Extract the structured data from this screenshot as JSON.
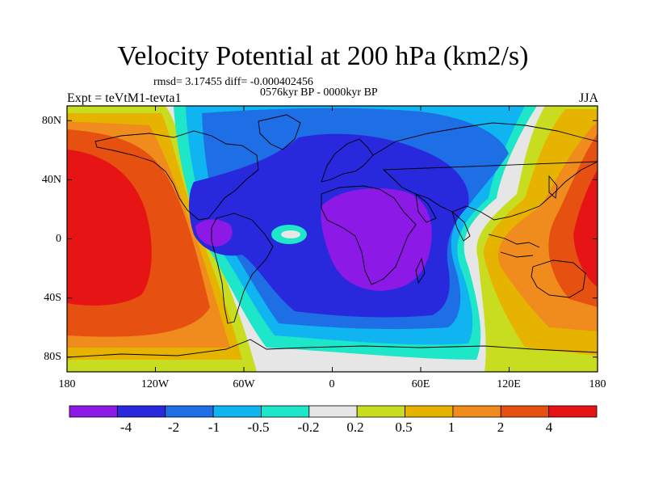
{
  "header": {
    "title": "Velocity Potential at 200 hPa (km2/s)",
    "stats": "rmsd= 3.17455 diff= -0.000402456",
    "period": "0576kyr BP - 0000kyr BP",
    "experiment": "Expt = teVtM1-tevta1",
    "season": "JJA"
  },
  "axes": {
    "y_labels": [
      "80N",
      "40N",
      "0",
      "40S",
      "80S"
    ],
    "y_values": [
      80,
      40,
      0,
      -40,
      -80
    ],
    "x_labels": [
      "180",
      "120W",
      "60W",
      "0",
      "60E",
      "120E",
      "180"
    ],
    "x_values": [
      -180,
      -120,
      -60,
      0,
      60,
      120,
      180
    ],
    "x_range": [
      -180,
      180
    ],
    "y_range": [
      -90,
      90
    ]
  },
  "colorbar": {
    "labels": [
      "-4",
      "-2",
      "-1",
      "-0.5",
      "-0.2",
      "0.2",
      "0.5",
      "1",
      "2",
      "4"
    ],
    "colors": [
      "#8c19e6",
      "#2828dc",
      "#1e6ee6",
      "#10b4f0",
      "#1ee6c8",
      "#e6e6e6",
      "#c8dc20",
      "#e6b400",
      "#f08c1e",
      "#e65010",
      "#e61414"
    ]
  }
}
